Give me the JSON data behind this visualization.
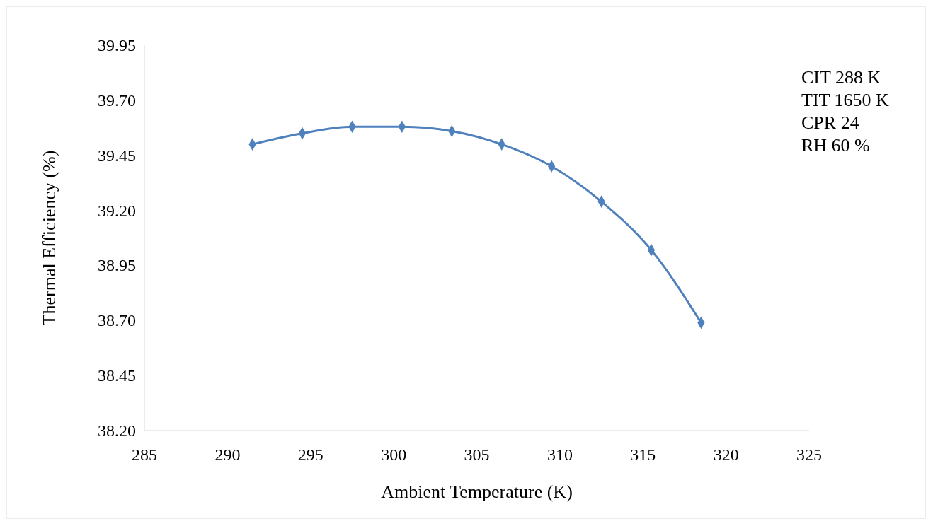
{
  "chart_data": {
    "type": "line",
    "xlabel": "Ambient Temperature (K)",
    "ylabel": "Thermal Efficiency (%)",
    "x": [
      291.5,
      294.5,
      297.5,
      300.5,
      303.5,
      306.5,
      309.5,
      312.5,
      315.5,
      318.5
    ],
    "series": [
      {
        "color": "#4f81bd",
        "values": [
          39.5,
          39.55,
          39.58,
          39.58,
          39.56,
          39.5,
          39.4,
          39.24,
          39.02,
          38.69
        ]
      }
    ],
    "xlim": [
      285,
      325
    ],
    "xticks": [
      285,
      290,
      295,
      300,
      305,
      310,
      315,
      320,
      325
    ],
    "ylim": [
      38.2,
      39.95
    ],
    "yticks": [
      {
        "value": 38.2,
        "label": "38.20"
      },
      38.45,
      {
        "value": 38.7,
        "label": "38.70"
      },
      38.95,
      {
        "value": 39.2,
        "label": "39.20"
      },
      39.45,
      {
        "value": 39.7,
        "label": "39.70"
      },
      39.95
    ],
    "marker": "diamond",
    "line_style": "solid",
    "grid": false,
    "annotations": [
      "CIT 288 K",
      "TIT 1650 K",
      "CPR 24",
      "RH 60 %"
    ]
  }
}
